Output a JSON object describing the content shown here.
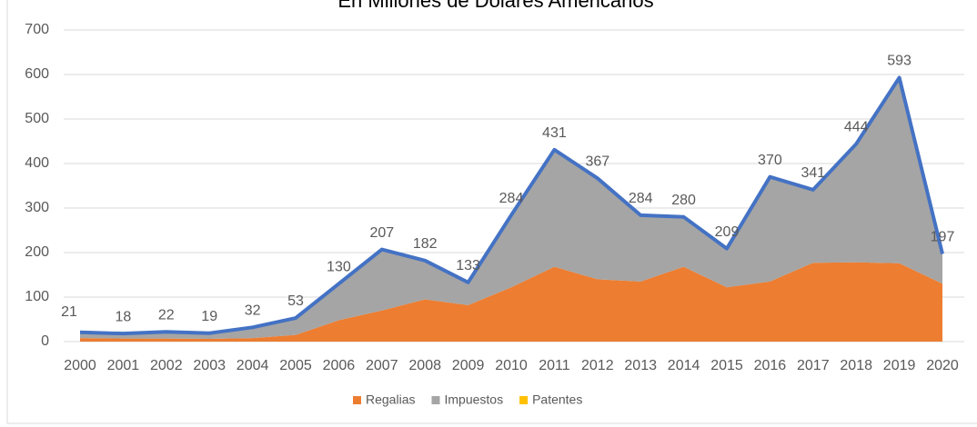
{
  "chart_data": {
    "type": "stacked_area",
    "title": "En Millones de Dólares Americanos",
    "categories": [
      "2000",
      "2001",
      "2002",
      "2003",
      "2004",
      "2005",
      "2006",
      "2007",
      "2008",
      "2009",
      "2010",
      "2011",
      "2012",
      "2013",
      "2014",
      "2015",
      "2016",
      "2017",
      "2018",
      "2019",
      "2020"
    ],
    "series": [
      {
        "name": "Regalias",
        "color": "#ed7d31",
        "values": [
          8,
          7,
          7,
          6,
          8,
          15,
          48,
          70,
          95,
          82,
          122,
          168,
          140,
          135,
          168,
          122,
          135,
          177,
          178,
          176,
          130
        ]
      },
      {
        "name": "Impuestos",
        "color": "#a5a5a5",
        "values": [
          13,
          11,
          15,
          13,
          24,
          38,
          82,
          137,
          87,
          51,
          162,
          263,
          227,
          149,
          112,
          83,
          231,
          160,
          266,
          417,
          66
        ]
      },
      {
        "name": "Patentes",
        "color": "#ffc000",
        "values": [
          0,
          0,
          0,
          0,
          0,
          0,
          0,
          0,
          0,
          0,
          0,
          0,
          0,
          0,
          0,
          4,
          4,
          4,
          0,
          0,
          1
        ]
      }
    ],
    "total": {
      "color": "#4472c4",
      "values": [
        21,
        18,
        22,
        19,
        32,
        53,
        130,
        207,
        182,
        133,
        284,
        431,
        367,
        284,
        280,
        209,
        370,
        341,
        444,
        593,
        197
      ]
    },
    "ylim": [
      0,
      700
    ],
    "yticks": [
      0,
      100,
      200,
      300,
      400,
      500,
      600,
      700
    ],
    "grid": true,
    "legend": "bottom"
  }
}
